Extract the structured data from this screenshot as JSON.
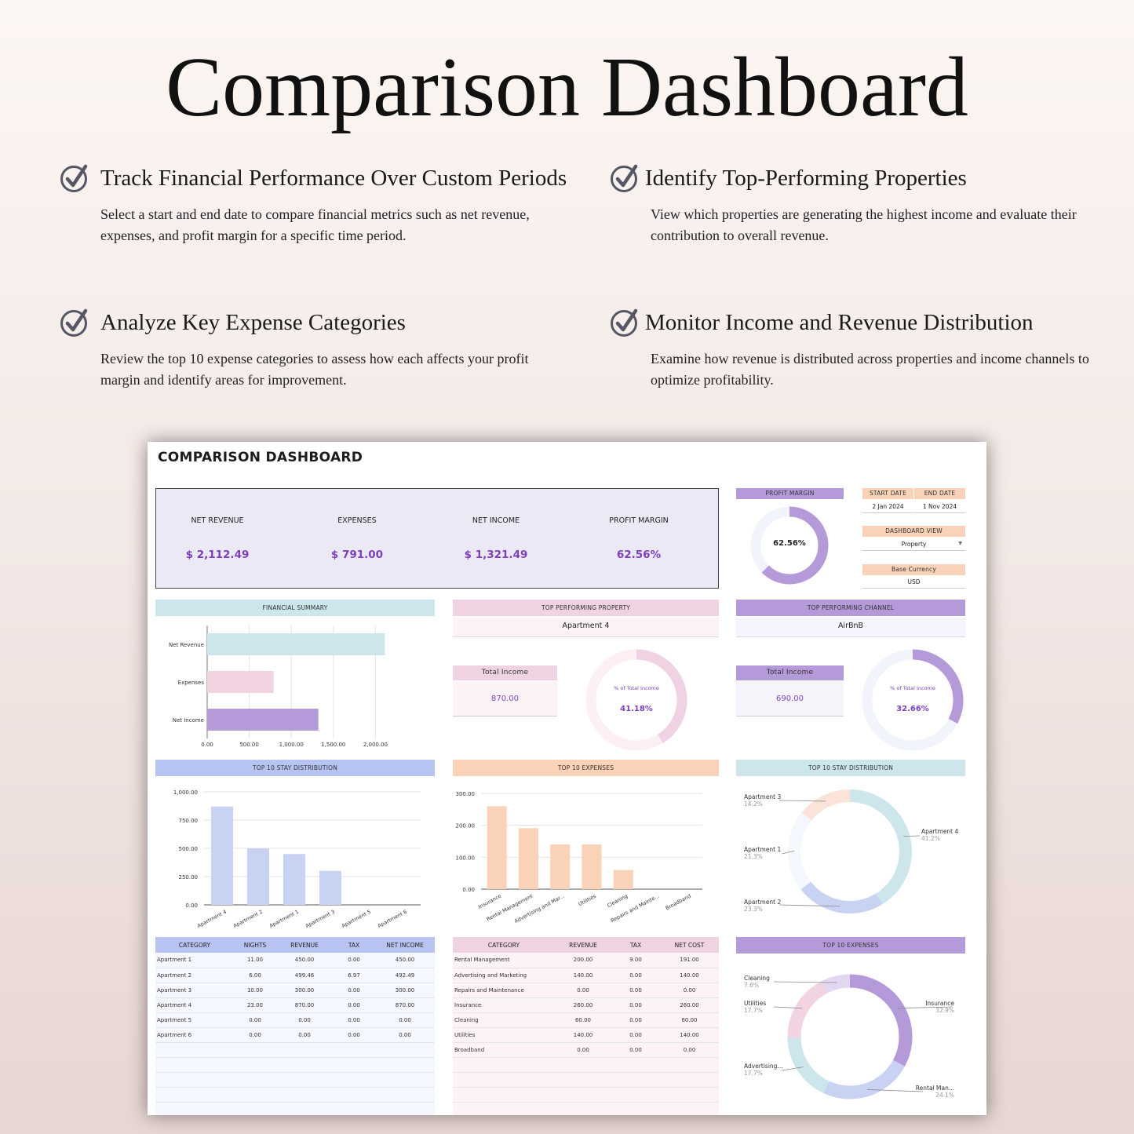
{
  "hero": {
    "title": "Comparison Dashboard"
  },
  "features": [
    {
      "title": "Track Financial Performance Over Custom Periods",
      "body": "Select a start and end date to compare financial metrics such as net revenue, expenses, and profit margin for a specific time period."
    },
    {
      "title": "Identify Top-Performing Properties",
      "body": "View which properties are generating the highest income and evaluate their contribution to overall revenue."
    },
    {
      "title": "Analyze Key Expense Categories",
      "body": "Review the top 10 expense categories to assess how each affects your profit margin and identify areas for improvement."
    },
    {
      "title": "Monitor Income and Revenue Distribution",
      "body": "Examine how revenue is distributed across properties and income channels to optimize profitability."
    }
  ],
  "dashboard": {
    "title": "COMPARISON DASHBOARD",
    "kpis": [
      {
        "label": "NET REVENUE",
        "value": "$ 2,112.49"
      },
      {
        "label": "EXPENSES",
        "value": "$ 791.00"
      },
      {
        "label": "NET INCOME",
        "value": "$ 1,321.49"
      },
      {
        "label": "PROFIT MARGIN",
        "value": "62.56%"
      }
    ],
    "profit_margin": {
      "header": "PROFIT MARGIN",
      "value": "62.56%",
      "fraction": 0.6256
    },
    "dates": {
      "start_label": "START DATE",
      "end_label": "END DATE",
      "start": "2 Jan 2024",
      "end": "1 Nov 2024"
    },
    "view": {
      "label": "DASHBOARD VIEW",
      "value": "Property"
    },
    "currency": {
      "label": "Base Currency",
      "value": "USD"
    },
    "top_property": {
      "header": "TOP PERFORMING PROPERTY",
      "name": "Apartment 4",
      "income_label": "Total Income",
      "income": "870.00",
      "pct_label": "% of Total Income",
      "pct": "41.18%",
      "fraction": 0.4118
    },
    "top_channel": {
      "header": "TOP PERFORMING CHANNEL",
      "name": "AirBnB",
      "income_label": "Total Income",
      "income": "690.00",
      "pct_label": "% of Total Income",
      "pct": "32.66%",
      "fraction": 0.3266
    },
    "section_headers": {
      "financial_summary": "FINANCIAL SUMMARY",
      "stay_distribution": "TOP 10 STAY DISTRIBUTION",
      "top_expenses": "TOP 10 EXPENSES",
      "stay_distribution_donut": "TOP 10 STAY DISTRIBUTION",
      "top_expenses_donut": "TOP 10 EXPENSES"
    },
    "stay_table": {
      "columns": [
        "CATEGORY",
        "NIGHTS",
        "REVENUE",
        "TAX",
        "NET INCOME"
      ],
      "rows": [
        [
          "Apartment 1",
          "11.00",
          "450.00",
          "0.00",
          "450.00"
        ],
        [
          "Apartment 2",
          "6.00",
          "499.46",
          "6.97",
          "492.49"
        ],
        [
          "Apartment 3",
          "10.00",
          "300.00",
          "0.00",
          "300.00"
        ],
        [
          "Apartment 4",
          "23.00",
          "870.00",
          "0.00",
          "870.00"
        ],
        [
          "Apartment 5",
          "0.00",
          "0.00",
          "0.00",
          "0.00"
        ],
        [
          "Apartment 6",
          "0.00",
          "0.00",
          "0.00",
          "0.00"
        ]
      ]
    },
    "expense_table": {
      "columns": [
        "CATEGORY",
        "REVENUE",
        "TAX",
        "NET COST"
      ],
      "rows": [
        [
          "Rental Management",
          "200.00",
          "9.00",
          "191.00"
        ],
        [
          "Advertising and Marketing",
          "140.00",
          "0.00",
          "140.00"
        ],
        [
          "Repairs and Maintenance",
          "0.00",
          "0.00",
          "0.00"
        ],
        [
          "Insurance",
          "260.00",
          "0.00",
          "260.00"
        ],
        [
          "Cleaning",
          "60.00",
          "0.00",
          "60.00"
        ],
        [
          "Utilities",
          "140.00",
          "0.00",
          "140.00"
        ],
        [
          "Broadband",
          "0.00",
          "0.00",
          "0.00"
        ]
      ]
    }
  },
  "colors": {
    "purple": "#b59ad9",
    "pink": "#efd3e2",
    "blue_header": "#b7c4f1",
    "peach": "#f9d2b7",
    "teal_header": "#cde6ec",
    "value_purple": "#7b3fbf"
  },
  "chart_data": [
    {
      "type": "bar",
      "orientation": "horizontal",
      "categories": [
        "Net Revenue",
        "Expenses",
        "Net Income"
      ],
      "values": [
        2112.49,
        791.0,
        1321.49
      ],
      "xlim": [
        0,
        2500
      ],
      "ticks": [
        "0.00",
        "500.00",
        "1,000.00",
        "1,500.00",
        "2,000.00"
      ],
      "colors": [
        "#cde6ec",
        "#f2d3e2",
        "#b59ad9"
      ]
    },
    {
      "type": "bar",
      "categories": [
        "Apartment 4",
        "Apartment 2",
        "Apartment 1",
        "Apartment 3",
        "Apartment 5",
        "Apartment 6"
      ],
      "values": [
        870,
        499.46,
        450,
        300,
        0,
        0
      ],
      "ylim": [
        0,
        1000
      ],
      "ticks": [
        "0.00",
        "250.00",
        "500.00",
        "750.00",
        "1,000.00"
      ],
      "color": "#c8d2f3"
    },
    {
      "type": "bar",
      "categories": [
        "Insurance",
        "Rental Management",
        "Advertising and Mar...",
        "Utilities",
        "Cleaning",
        "Repairs and Mainte...",
        "Broadband"
      ],
      "values": [
        260,
        191,
        140,
        140,
        60,
        0,
        0
      ],
      "ylim": [
        0,
        300
      ],
      "ticks": [
        "0.00",
        "100.00",
        "200.00",
        "300.00"
      ],
      "color": "#f9d2b7"
    },
    {
      "type": "pie",
      "variant": "donut",
      "labels": [
        "Apartment 4",
        "Apartment 2",
        "Apartment 1",
        "Apartment 3"
      ],
      "values": [
        41.2,
        23.3,
        21.3,
        14.2
      ],
      "pct_labels": [
        "41.2%",
        "23.3%",
        "21.3%",
        "14.2%"
      ],
      "colors": [
        "#cde6ec",
        "#c8d2f3",
        "#f4f7fd",
        "#fbe3da"
      ]
    },
    {
      "type": "pie",
      "variant": "donut",
      "labels": [
        "Insurance",
        "Rental Man...",
        "Advertising...",
        "Utilities",
        "Cleaning"
      ],
      "values": [
        32.9,
        24.1,
        17.7,
        17.7,
        7.6
      ],
      "pct_labels": [
        "32.9%",
        "24.1%",
        "17.7%",
        "17.7%",
        "7.6%"
      ],
      "colors": [
        "#b59ad9",
        "#c8d2f3",
        "#cde6ec",
        "#f2d3e2",
        "#e3d6f1"
      ]
    }
  ]
}
